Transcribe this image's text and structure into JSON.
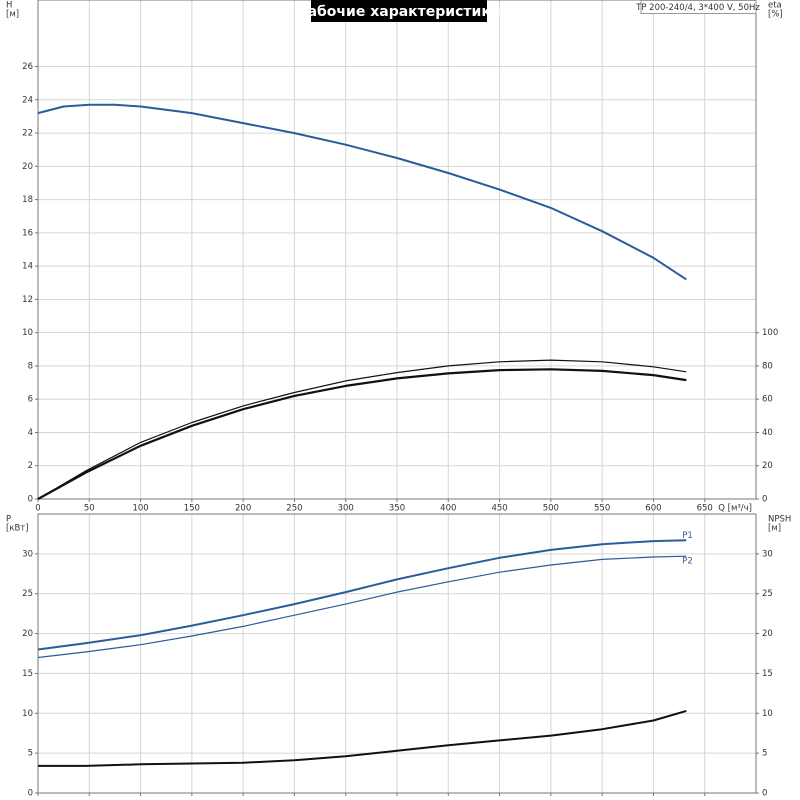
{
  "charts": [
    {
      "type": "line",
      "title": "Рабочие характеристики",
      "annotation": "TP 200-240/4, 3*400 V, 50Hz",
      "ylabel": "H",
      "yunit": "[м]",
      "y2label": "eta",
      "y2unit": "[%]",
      "xlabel": "Q [м³/ч]",
      "xlim": [
        0,
        700
      ],
      "xticks": [
        0,
        50,
        100,
        150,
        200,
        250,
        300,
        350,
        400,
        450,
        500,
        550,
        600,
        650
      ],
      "xtick_labels": true,
      "ylim": [
        0,
        30
      ],
      "yticks": [
        0,
        2,
        4,
        6,
        8,
        10,
        12,
        14,
        16,
        18,
        20,
        22,
        24,
        26
      ],
      "y2lim": [
        0,
        300
      ],
      "y2ticks": [
        0,
        20,
        40,
        60,
        80,
        100
      ],
      "grid": true,
      "series": [
        {
          "color": "#2b5c9a",
          "linewidth": 2,
          "x": [
            0,
            25,
            50,
            75,
            100,
            150,
            200,
            250,
            300,
            350,
            400,
            450,
            500,
            550,
            600,
            632
          ],
          "values": [
            23.2,
            23.6,
            23.7,
            23.7,
            23.6,
            23.2,
            22.6,
            22.0,
            21.3,
            20.5,
            19.6,
            18.6,
            17.5,
            16.1,
            14.5,
            13.2
          ]
        },
        {
          "color": "#111111",
          "linewidth": 1.2,
          "axis": "y2",
          "x": [
            0,
            47,
            100,
            150,
            200,
            250,
            300,
            350,
            400,
            450,
            500,
            550,
            600,
            632
          ],
          "values": [
            0,
            17,
            34,
            46,
            56,
            64,
            71,
            76,
            80,
            82.5,
            83.5,
            82.5,
            79.5,
            76.5
          ]
        },
        {
          "color": "#111111",
          "linewidth": 2.2,
          "axis": "y2",
          "x": [
            0,
            47,
            100,
            150,
            200,
            250,
            300,
            350,
            400,
            450,
            500,
            550,
            600,
            632
          ],
          "values": [
            0,
            16,
            32,
            44,
            54,
            62,
            68,
            72.5,
            75.5,
            77.5,
            78,
            77,
            74.5,
            71.5
          ]
        }
      ]
    },
    {
      "type": "line",
      "ylabel": "P",
      "yunit": "[кВт]",
      "y2label": "NPSH",
      "y2unit": "[м]",
      "xlim": [
        0,
        700
      ],
      "xticks": [
        0,
        50,
        100,
        150,
        200,
        250,
        300,
        350,
        400,
        450,
        500,
        550,
        600,
        650
      ],
      "xtick_labels": false,
      "ylim": [
        0,
        35
      ],
      "yticks": [
        0,
        5,
        10,
        15,
        20,
        25,
        30
      ],
      "y2lim": [
        0,
        35
      ],
      "y2ticks": [
        0,
        5,
        10,
        15,
        20,
        25,
        30
      ],
      "grid": true,
      "series": [
        {
          "name": "P1",
          "color": "#2b5c9a",
          "linewidth": 2,
          "x": [
            0,
            47,
            100,
            150,
            200,
            250,
            300,
            350,
            400,
            450,
            500,
            550,
            600,
            632
          ],
          "values": [
            18.0,
            18.8,
            19.8,
            21.0,
            22.3,
            23.7,
            25.2,
            26.8,
            28.2,
            29.5,
            30.5,
            31.2,
            31.6,
            31.7
          ]
        },
        {
          "name": "P2",
          "color": "#2b5c9a",
          "linewidth": 1.2,
          "x": [
            0,
            47,
            100,
            150,
            200,
            250,
            300,
            350,
            400,
            450,
            500,
            550,
            600,
            632
          ],
          "values": [
            17.0,
            17.7,
            18.6,
            19.7,
            20.9,
            22.3,
            23.7,
            25.2,
            26.5,
            27.7,
            28.6,
            29.3,
            29.6,
            29.7
          ]
        },
        {
          "color": "#111111",
          "linewidth": 2,
          "axis": "y2",
          "x": [
            0,
            47,
            100,
            150,
            200,
            250,
            300,
            350,
            400,
            450,
            500,
            550,
            600,
            632
          ],
          "values": [
            3.4,
            3.4,
            3.6,
            3.7,
            3.8,
            4.1,
            4.6,
            5.3,
            6.0,
            6.6,
            7.2,
            8.0,
            9.1,
            10.3
          ]
        }
      ]
    }
  ]
}
